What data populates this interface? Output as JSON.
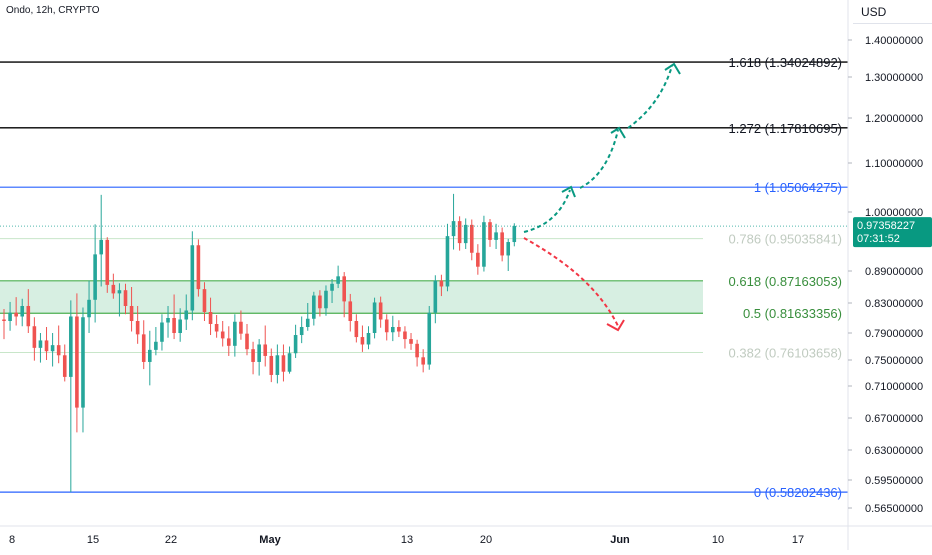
{
  "header": {
    "symbol": "Ondo, 12h, CRYPTO",
    "currency": "USD"
  },
  "price_badge": {
    "price": "0.97358227",
    "countdown": "07:31:52",
    "color": "#089981"
  },
  "colors": {
    "up": "#26a69a",
    "down": "#ef5350",
    "fib_black": "#000000",
    "fib_blue": "#2962ff",
    "fib_green": "#4caf50",
    "fib_faint": "#c8e6c9",
    "zone_fill": "#d7efe2",
    "arrow_up": "#089981",
    "arrow_down": "#f23645"
  },
  "chart_data": {
    "type": "candlestick",
    "title": "Ondo, 12h, CRYPTO",
    "y_ticks": [
      "1.40000000",
      "1.30000000",
      "1.20000000",
      "1.10000000",
      "1.00000000",
      "0.89000000",
      "0.83000000",
      "0.79000000",
      "0.75000000",
      "0.71000000",
      "0.67000000",
      "0.63000000",
      "0.59500000",
      "0.56500000"
    ],
    "x_ticks": [
      "8",
      "15",
      "22",
      "May",
      "13",
      "20",
      "Jun",
      "10",
      "17"
    ],
    "fib_levels": [
      {
        "ratio": "1.618",
        "value": 1.34024892,
        "label": "1.618 (1.34024892)",
        "style": "black"
      },
      {
        "ratio": "1.272",
        "value": 1.17810695,
        "label": "1.272 (1.17810695)",
        "style": "black"
      },
      {
        "ratio": "1",
        "value": 1.05064275,
        "label": "1 (1.05064275)",
        "style": "blue"
      },
      {
        "ratio": "0.786",
        "value": 0.95035841,
        "label": "0.786 (0.95035841)",
        "style": "faint"
      },
      {
        "ratio": "0.618",
        "value": 0.87163053,
        "label": "0.618 (0.87163053)",
        "style": "green"
      },
      {
        "ratio": "0.5",
        "value": 0.81633356,
        "label": "0.5 (0.81633356)",
        "style": "green"
      },
      {
        "ratio": "0.382",
        "value": 0.76103658,
        "label": "0.382 (0.76103658)",
        "style": "faint"
      },
      {
        "ratio": "0",
        "value": 0.58202436,
        "label": "0 (0.58202436)",
        "style": "blue"
      }
    ],
    "support_zone": [
      0.81633356,
      0.87163053
    ],
    "last_price": 0.97358227,
    "candles": [
      {
        "o": 0.808,
        "h": 0.822,
        "l": 0.781,
        "c": 0.806
      },
      {
        "o": 0.806,
        "h": 0.832,
        "l": 0.793,
        "c": 0.817
      },
      {
        "o": 0.817,
        "h": 0.841,
        "l": 0.8,
        "c": 0.812
      },
      {
        "o": 0.812,
        "h": 0.838,
        "l": 0.799,
        "c": 0.826
      },
      {
        "o": 0.826,
        "h": 0.856,
        "l": 0.79,
        "c": 0.799
      },
      {
        "o": 0.799,
        "h": 0.811,
        "l": 0.749,
        "c": 0.768
      },
      {
        "o": 0.768,
        "h": 0.79,
        "l": 0.746,
        "c": 0.779
      },
      {
        "o": 0.779,
        "h": 0.798,
        "l": 0.75,
        "c": 0.763
      },
      {
        "o": 0.763,
        "h": 0.79,
        "l": 0.74,
        "c": 0.772
      },
      {
        "o": 0.772,
        "h": 0.8,
        "l": 0.745,
        "c": 0.757
      },
      {
        "o": 0.757,
        "h": 0.773,
        "l": 0.717,
        "c": 0.724
      },
      {
        "o": 0.724,
        "h": 0.835,
        "l": 0.582,
        "c": 0.812
      },
      {
        "o": 0.812,
        "h": 0.848,
        "l": 0.652,
        "c": 0.683
      },
      {
        "o": 0.683,
        "h": 0.824,
        "l": 0.652,
        "c": 0.811
      },
      {
        "o": 0.811,
        "h": 0.872,
        "l": 0.79,
        "c": 0.836
      },
      {
        "o": 0.836,
        "h": 0.977,
        "l": 0.804,
        "c": 0.921
      },
      {
        "o": 0.921,
        "h": 1.035,
        "l": 0.861,
        "c": 0.948
      },
      {
        "o": 0.948,
        "h": 0.953,
        "l": 0.849,
        "c": 0.864
      },
      {
        "o": 0.864,
        "h": 0.885,
        "l": 0.838,
        "c": 0.848
      },
      {
        "o": 0.848,
        "h": 0.867,
        "l": 0.812,
        "c": 0.854
      },
      {
        "o": 0.854,
        "h": 0.866,
        "l": 0.815,
        "c": 0.826
      },
      {
        "o": 0.826,
        "h": 0.86,
        "l": 0.792,
        "c": 0.806
      },
      {
        "o": 0.806,
        "h": 0.826,
        "l": 0.774,
        "c": 0.788
      },
      {
        "o": 0.788,
        "h": 0.807,
        "l": 0.736,
        "c": 0.747
      },
      {
        "o": 0.747,
        "h": 0.793,
        "l": 0.711,
        "c": 0.765
      },
      {
        "o": 0.765,
        "h": 0.798,
        "l": 0.757,
        "c": 0.777
      },
      {
        "o": 0.777,
        "h": 0.815,
        "l": 0.764,
        "c": 0.804
      },
      {
        "o": 0.804,
        "h": 0.826,
        "l": 0.783,
        "c": 0.81
      },
      {
        "o": 0.81,
        "h": 0.846,
        "l": 0.781,
        "c": 0.79
      },
      {
        "o": 0.79,
        "h": 0.823,
        "l": 0.777,
        "c": 0.808
      },
      {
        "o": 0.808,
        "h": 0.846,
        "l": 0.794,
        "c": 0.82
      },
      {
        "o": 0.82,
        "h": 0.964,
        "l": 0.807,
        "c": 0.938
      },
      {
        "o": 0.938,
        "h": 0.949,
        "l": 0.842,
        "c": 0.856
      },
      {
        "o": 0.856,
        "h": 0.869,
        "l": 0.806,
        "c": 0.818
      },
      {
        "o": 0.818,
        "h": 0.84,
        "l": 0.787,
        "c": 0.802
      },
      {
        "o": 0.802,
        "h": 0.814,
        "l": 0.783,
        "c": 0.792
      },
      {
        "o": 0.792,
        "h": 0.806,
        "l": 0.77,
        "c": 0.782
      },
      {
        "o": 0.782,
        "h": 0.799,
        "l": 0.756,
        "c": 0.771
      },
      {
        "o": 0.771,
        "h": 0.815,
        "l": 0.755,
        "c": 0.805
      },
      {
        "o": 0.805,
        "h": 0.82,
        "l": 0.78,
        "c": 0.789
      },
      {
        "o": 0.789,
        "h": 0.802,
        "l": 0.757,
        "c": 0.766
      },
      {
        "o": 0.766,
        "h": 0.777,
        "l": 0.728,
        "c": 0.747
      },
      {
        "o": 0.747,
        "h": 0.781,
        "l": 0.726,
        "c": 0.773
      },
      {
        "o": 0.773,
        "h": 0.8,
        "l": 0.74,
        "c": 0.756
      },
      {
        "o": 0.756,
        "h": 0.767,
        "l": 0.716,
        "c": 0.727
      },
      {
        "o": 0.727,
        "h": 0.773,
        "l": 0.714,
        "c": 0.757
      },
      {
        "o": 0.757,
        "h": 0.773,
        "l": 0.717,
        "c": 0.732
      },
      {
        "o": 0.732,
        "h": 0.77,
        "l": 0.729,
        "c": 0.76
      },
      {
        "o": 0.76,
        "h": 0.801,
        "l": 0.753,
        "c": 0.787
      },
      {
        "o": 0.787,
        "h": 0.812,
        "l": 0.775,
        "c": 0.798
      },
      {
        "o": 0.798,
        "h": 0.83,
        "l": 0.793,
        "c": 0.809
      },
      {
        "o": 0.809,
        "h": 0.851,
        "l": 0.8,
        "c": 0.844
      },
      {
        "o": 0.844,
        "h": 0.854,
        "l": 0.812,
        "c": 0.823
      },
      {
        "o": 0.823,
        "h": 0.863,
        "l": 0.813,
        "c": 0.853
      },
      {
        "o": 0.853,
        "h": 0.875,
        "l": 0.83,
        "c": 0.866
      },
      {
        "o": 0.866,
        "h": 0.9,
        "l": 0.858,
        "c": 0.88
      },
      {
        "o": 0.88,
        "h": 0.888,
        "l": 0.811,
        "c": 0.833
      },
      {
        "o": 0.833,
        "h": 0.847,
        "l": 0.792,
        "c": 0.806
      },
      {
        "o": 0.806,
        "h": 0.815,
        "l": 0.776,
        "c": 0.784
      },
      {
        "o": 0.784,
        "h": 0.8,
        "l": 0.762,
        "c": 0.773
      },
      {
        "o": 0.773,
        "h": 0.799,
        "l": 0.766,
        "c": 0.79
      },
      {
        "o": 0.79,
        "h": 0.84,
        "l": 0.782,
        "c": 0.831
      },
      {
        "o": 0.831,
        "h": 0.842,
        "l": 0.797,
        "c": 0.808
      },
      {
        "o": 0.808,
        "h": 0.815,
        "l": 0.779,
        "c": 0.791
      },
      {
        "o": 0.791,
        "h": 0.813,
        "l": 0.778,
        "c": 0.798
      },
      {
        "o": 0.798,
        "h": 0.807,
        "l": 0.784,
        "c": 0.792
      },
      {
        "o": 0.792,
        "h": 0.799,
        "l": 0.767,
        "c": 0.781
      },
      {
        "o": 0.781,
        "h": 0.79,
        "l": 0.765,
        "c": 0.774
      },
      {
        "o": 0.774,
        "h": 0.78,
        "l": 0.74,
        "c": 0.754
      },
      {
        "o": 0.754,
        "h": 0.766,
        "l": 0.731,
        "c": 0.743
      },
      {
        "o": 0.743,
        "h": 0.826,
        "l": 0.735,
        "c": 0.817
      },
      {
        "o": 0.817,
        "h": 0.882,
        "l": 0.803,
        "c": 0.872
      },
      {
        "o": 0.872,
        "h": 0.883,
        "l": 0.843,
        "c": 0.861
      },
      {
        "o": 0.861,
        "h": 0.978,
        "l": 0.852,
        "c": 0.955
      },
      {
        "o": 0.955,
        "h": 1.037,
        "l": 0.93,
        "c": 0.983
      },
      {
        "o": 0.983,
        "h": 0.992,
        "l": 0.928,
        "c": 0.942
      },
      {
        "o": 0.942,
        "h": 0.988,
        "l": 0.931,
        "c": 0.976
      },
      {
        "o": 0.976,
        "h": 0.986,
        "l": 0.91,
        "c": 0.924
      },
      {
        "o": 0.924,
        "h": 0.94,
        "l": 0.883,
        "c": 0.898
      },
      {
        "o": 0.898,
        "h": 0.993,
        "l": 0.889,
        "c": 0.981
      },
      {
        "o": 0.981,
        "h": 0.987,
        "l": 0.935,
        "c": 0.948
      },
      {
        "o": 0.948,
        "h": 0.978,
        "l": 0.931,
        "c": 0.962
      },
      {
        "o": 0.962,
        "h": 0.971,
        "l": 0.908,
        "c": 0.919
      },
      {
        "o": 0.919,
        "h": 0.95,
        "l": 0.89,
        "c": 0.944
      },
      {
        "o": 0.944,
        "h": 0.979,
        "l": 0.936,
        "c": 0.974
      }
    ]
  }
}
